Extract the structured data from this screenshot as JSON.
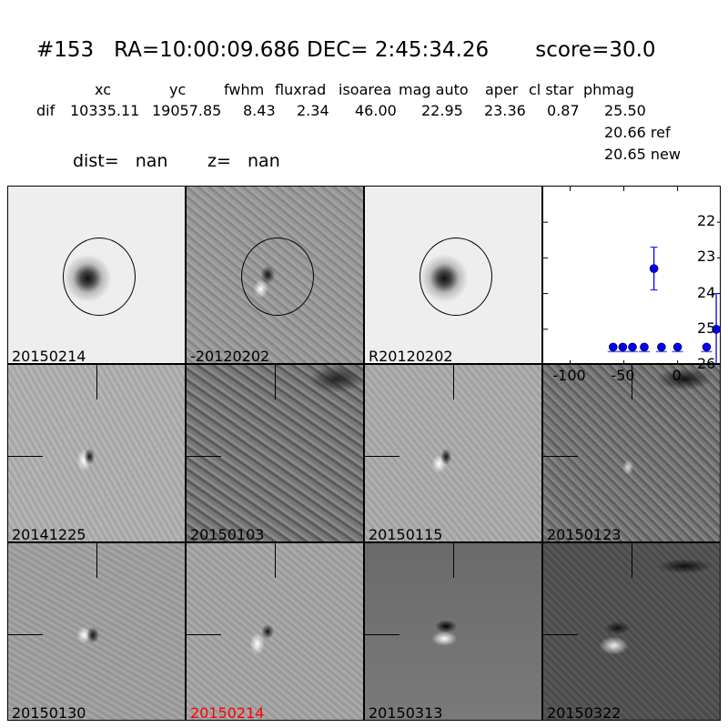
{
  "header": {
    "title": "#153   RA=10:00:09.686 DEC= 2:45:34.26       score=30.0",
    "columns": [
      "xc",
      "yc",
      "fwhm",
      "fluxrad",
      "isoarea",
      "mag auto",
      "aper",
      "cl star",
      "phmag"
    ],
    "row_label": "dif",
    "values": [
      "10335.11",
      "19057.85",
      "8.43",
      "2.34",
      "46.00",
      "22.95",
      "23.36",
      "0.87",
      "25.50"
    ],
    "ref": "20.66 ref",
    "new": "20.65 new",
    "dist": "dist=   nan",
    "z": "z=   nan"
  },
  "panels": [
    {
      "label": "20150214",
      "color": "#000000"
    },
    {
      "label": "-20120202",
      "color": "#000000"
    },
    {
      "label": "R20120202",
      "color": "#000000"
    },
    {
      "label": "20141225",
      "color": "#000000"
    },
    {
      "label": "20150103",
      "color": "#000000"
    },
    {
      "label": "20150115",
      "color": "#000000"
    },
    {
      "label": "20150123",
      "color": "#000000"
    },
    {
      "label": "20150130",
      "color": "#000000"
    },
    {
      "label": "20150214",
      "color": "#ff0000"
    },
    {
      "label": "20150313",
      "color": "#000000"
    },
    {
      "label": "20150322",
      "color": "#000000"
    }
  ],
  "chart_data": {
    "type": "scatter",
    "marker_color": "#0000ff",
    "xlim": [
      -125,
      41
    ],
    "ylim": [
      26,
      21
    ],
    "y_inverted": true,
    "xticks": [
      "-100",
      "-50",
      "0"
    ],
    "xtick_values": [
      -100,
      -50,
      0
    ],
    "yticks": [
      "22",
      "23",
      "24",
      "25",
      "26"
    ],
    "ytick_values": [
      22,
      23,
      24,
      25,
      26
    ],
    "points": [
      {
        "x": -60,
        "y": 25.5,
        "upper_limit": true
      },
      {
        "x": -51,
        "y": 25.5,
        "upper_limit": true
      },
      {
        "x": -42,
        "y": 25.5,
        "upper_limit": true
      },
      {
        "x": -31,
        "y": 25.5,
        "upper_limit": true
      },
      {
        "x": -15,
        "y": 25.5,
        "upper_limit": true
      },
      {
        "x": 0,
        "y": 25.5,
        "upper_limit": true
      },
      {
        "x": 27,
        "y": 25.5,
        "upper_limit": true
      },
      {
        "x": -22,
        "y": 23.3,
        "err": 0.6
      },
      {
        "x": 36,
        "y": 25.0,
        "err": 1.0
      }
    ]
  }
}
